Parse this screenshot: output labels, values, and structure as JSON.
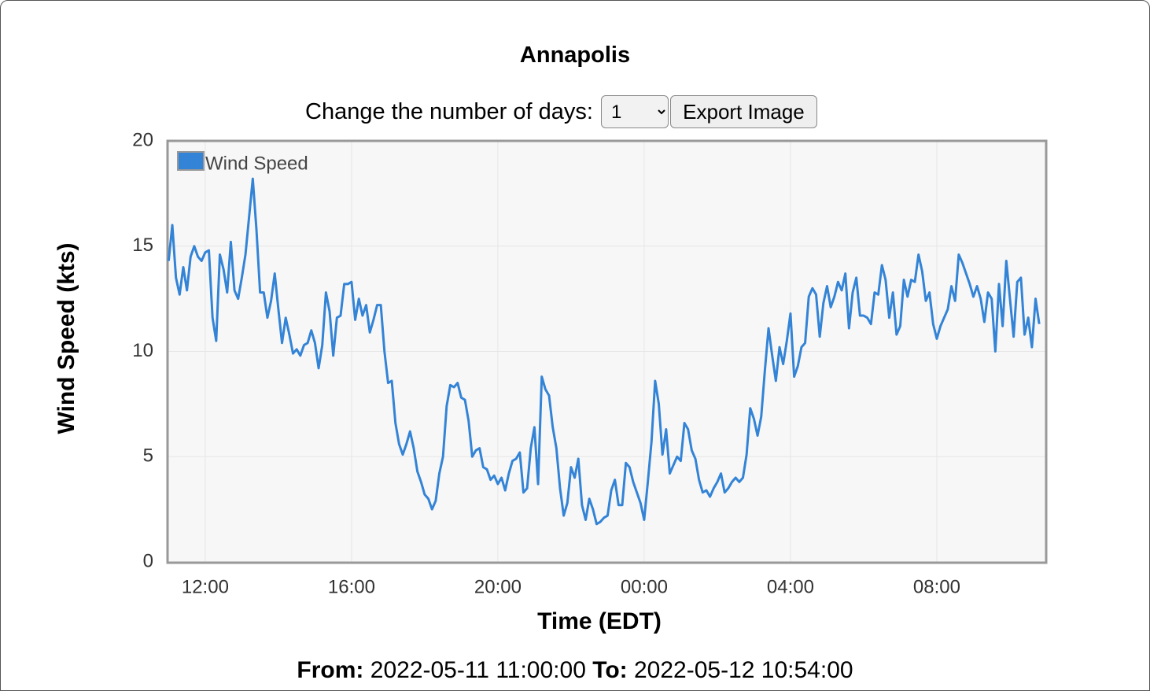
{
  "header": {
    "title": "Annapolis"
  },
  "controls": {
    "label": "Change the number of days:",
    "select": "1",
    "button": "Export Image"
  },
  "footer": {
    "from_label": "From:",
    "from": "2022-05-11 11:00:00",
    "to_label": "To:",
    "to": "2022-05-12 10:54:00"
  },
  "chart_data": {
    "type": "line",
    "x_label": "Time (EDT)",
    "y_label": "Wind Speed (kts)",
    "xlim": [
      10.97,
      34.99
    ],
    "ylim": [
      0,
      20
    ],
    "xticks": [
      {
        "value": 12,
        "label": "12:00"
      },
      {
        "value": 16,
        "label": "16:00"
      },
      {
        "value": 20,
        "label": "20:00"
      },
      {
        "value": 24,
        "label": "00:00"
      },
      {
        "value": 28,
        "label": "04:00"
      },
      {
        "value": 32,
        "label": "08:00"
      }
    ],
    "yticks": [
      0,
      5,
      10,
      15,
      20
    ],
    "grid": true,
    "legend": "top-left",
    "x": [
      11,
      11.1,
      11.2,
      11.3,
      11.4,
      11.5,
      11.6,
      11.7,
      11.8,
      11.9,
      12,
      12.1,
      12.2,
      12.3,
      12.4,
      12.5,
      12.6,
      12.7,
      12.8,
      12.9,
      13,
      13.1,
      13.2,
      13.3,
      13.4,
      13.5,
      13.6,
      13.7,
      13.8,
      13.9,
      14,
      14.1,
      14.2,
      14.3,
      14.4,
      14.5,
      14.6,
      14.7,
      14.8,
      14.9,
      15,
      15.1,
      15.2,
      15.3,
      15.4,
      15.5,
      15.6,
      15.7,
      15.8,
      15.9,
      16,
      16.1,
      16.2,
      16.3,
      16.4,
      16.5,
      16.6,
      16.7,
      16.8,
      16.9,
      17,
      17.1,
      17.2,
      17.3,
      17.4,
      17.5,
      17.6,
      17.7,
      17.8,
      17.9,
      18,
      18.1,
      18.2,
      18.3,
      18.4,
      18.5,
      18.6,
      18.7,
      18.8,
      18.9,
      19,
      19.1,
      19.2,
      19.3,
      19.4,
      19.5,
      19.6,
      19.7,
      19.8,
      19.9,
      20,
      20.1,
      20.2,
      20.3,
      20.4,
      20.5,
      20.6,
      20.7,
      20.8,
      20.9,
      21,
      21.1,
      21.2,
      21.3,
      21.4,
      21.5,
      21.6,
      21.7,
      21.8,
      21.9,
      22,
      22.1,
      22.2,
      22.3,
      22.4,
      22.5,
      22.6,
      22.7,
      22.8,
      22.9,
      23,
      23.1,
      23.2,
      23.3,
      23.4,
      23.5,
      23.6,
      23.7,
      23.8,
      23.9,
      24,
      24.1,
      24.2,
      24.3,
      24.4,
      24.5,
      24.6,
      24.7,
      24.8,
      24.9,
      25,
      25.1,
      25.2,
      25.3,
      25.4,
      25.5,
      25.6,
      25.7,
      25.8,
      25.9,
      26,
      26.1,
      26.2,
      26.3,
      26.4,
      26.5,
      26.6,
      26.7,
      26.8,
      26.9,
      27,
      27.1,
      27.2,
      27.3,
      27.4,
      27.5,
      27.6,
      27.7,
      27.8,
      27.9,
      28,
      28.1,
      28.2,
      28.3,
      28.4,
      28.5,
      28.6,
      28.7,
      28.8,
      28.9,
      29,
      29.1,
      29.2,
      29.3,
      29.4,
      29.5,
      29.6,
      29.7,
      29.8,
      29.9,
      30,
      30.1,
      30.2,
      30.3,
      30.4,
      30.5,
      30.6,
      30.7,
      30.8,
      30.9,
      31,
      31.1,
      31.2,
      31.3,
      31.4,
      31.5,
      31.6,
      31.7,
      31.8,
      31.9,
      32,
      32.1,
      32.2,
      32.3,
      32.4,
      32.5,
      32.6,
      32.7,
      32.8,
      32.9,
      33,
      33.1,
      33.2,
      33.3,
      33.4,
      33.5,
      33.6,
      33.7,
      33.8,
      33.9,
      34,
      34.1,
      34.2,
      34.3,
      34.4,
      34.5,
      34.6,
      34.7,
      34.8
    ],
    "series": [
      {
        "name": "Wind Speed",
        "color": "#3383d6",
        "values": [
          14.3,
          16.0,
          13.5,
          12.7,
          14.0,
          12.9,
          14.5,
          15.0,
          14.5,
          14.3,
          14.7,
          14.8,
          11.6,
          10.5,
          14.6,
          13.9,
          12.8,
          15.2,
          12.9,
          12.5,
          13.5,
          14.6,
          16.4,
          18.2,
          15.8,
          12.8,
          12.8,
          11.6,
          12.4,
          13.7,
          12.0,
          10.4,
          11.6,
          10.8,
          9.9,
          10.1,
          9.8,
          10.3,
          10.4,
          11.0,
          10.4,
          9.2,
          10.3,
          12.8,
          11.9,
          9.8,
          11.6,
          11.7,
          13.2,
          13.2,
          13.3,
          11.5,
          12.5,
          11.7,
          12.2,
          10.9,
          11.5,
          12.2,
          12.2,
          10.0,
          8.5,
          8.6,
          6.6,
          5.6,
          5.1,
          5.6,
          6.2,
          5.4,
          4.3,
          3.8,
          3.2,
          3.0,
          2.5,
          2.9,
          4.2,
          5.0,
          7.4,
          8.4,
          8.3,
          8.5,
          7.8,
          7.7,
          6.7,
          5.0,
          5.3,
          5.4,
          4.5,
          4.4,
          3.9,
          4.1,
          3.7,
          4.0,
          3.4,
          4.2,
          4.8,
          4.9,
          5.2,
          3.3,
          3.5,
          5.4,
          6.4,
          3.7,
          8.8,
          8.2,
          7.9,
          6.4,
          5.4,
          3.5,
          2.2,
          2.8,
          4.5,
          4.0,
          4.9,
          2.7,
          2.0,
          3.0,
          2.5,
          1.8,
          1.9,
          2.1,
          2.2,
          3.4,
          3.9,
          2.7,
          2.7,
          4.7,
          4.5,
          3.8,
          3.3,
          2.8,
          2.0,
          3.8,
          5.7,
          8.6,
          7.5,
          5.1,
          6.3,
          4.2,
          4.6,
          5.0,
          4.8,
          6.6,
          6.3,
          5.3,
          4.9,
          3.9,
          3.3,
          3.4,
          3.1,
          3.5,
          3.8,
          4.2,
          3.3,
          3.5,
          3.8,
          4.0,
          3.8,
          4.0,
          5.1,
          7.3,
          6.8,
          6.0,
          6.9,
          9.1,
          11.1,
          9.8,
          8.6,
          10.2,
          9.4,
          10.5,
          11.8,
          8.8,
          9.3,
          10.2,
          10.4,
          12.6,
          13.0,
          12.7,
          10.7,
          12.3,
          13.1,
          12.1,
          12.6,
          13.3,
          12.9,
          13.7,
          11.1,
          12.8,
          13.5,
          11.7,
          11.7,
          11.6,
          11.3,
          12.8,
          12.7,
          14.1,
          13.4,
          11.6,
          12.8,
          10.8,
          11.2,
          13.4,
          12.6,
          13.4,
          13.3,
          14.6,
          13.8,
          12.4,
          12.8,
          11.3,
          10.6,
          11.2,
          11.6,
          12.0,
          13.1,
          12.4,
          14.6,
          14.2,
          13.7,
          13.2,
          12.6,
          13.1,
          12.5,
          11.4,
          12.8,
          12.5,
          10.0,
          13.2,
          11.2,
          14.3,
          12.5,
          10.7,
          13.3,
          13.5,
          10.8,
          11.6,
          10.2,
          12.5,
          11.3
        ]
      }
    ]
  }
}
